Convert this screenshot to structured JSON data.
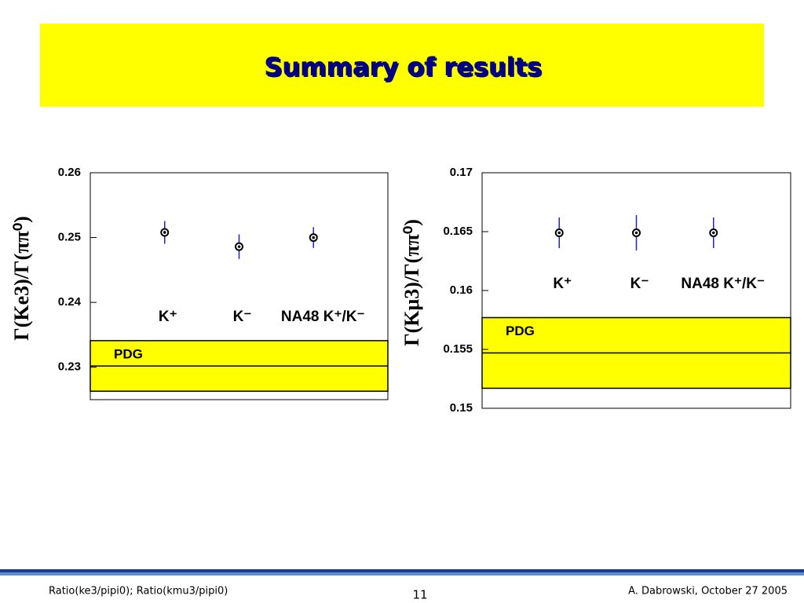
{
  "title": "Summary of results",
  "footer": {
    "left": "Ratio(ke3/pipi0); Ratio(kmu3/pipi0)",
    "page": "11",
    "right": "A. Dabrowski, October 27 2005"
  },
  "chart_data": [
    {
      "type": "errorbar",
      "ylabel": "Γ(Ke3)/Γ(ππ⁰)",
      "categories": [
        "K⁺",
        "K⁻",
        "NA48 K⁺/K⁻"
      ],
      "values": [
        0.2508,
        0.2486,
        0.25
      ],
      "errors": [
        0.00175,
        0.0019,
        0.0016
      ],
      "color": "#2222cc",
      "reference": {
        "name": "PDG",
        "value": 0.2302,
        "error": 0.0039,
        "color": "#ffff00"
      },
      "ylim": [
        0.225,
        0.26
      ],
      "yticks": [
        0.23,
        0.24,
        0.25,
        0.26
      ]
    },
    {
      "type": "errorbar",
      "ylabel": "Γ(Kμ3)/Γ(ππ⁰)",
      "categories": [
        "K⁺",
        "K⁻",
        "NA48 K⁺/K⁻"
      ],
      "values": [
        0.1649,
        0.1649,
        0.1649
      ],
      "errors": [
        0.0013,
        0.0015,
        0.0013
      ],
      "color": "#2222cc",
      "reference": {
        "name": "PDG",
        "value": 0.1547,
        "error": 0.003,
        "color": "#ffff00"
      },
      "ylim": [
        0.15,
        0.17
      ],
      "yticks": [
        0.15,
        0.155,
        0.16,
        0.165,
        0.17
      ]
    }
  ]
}
